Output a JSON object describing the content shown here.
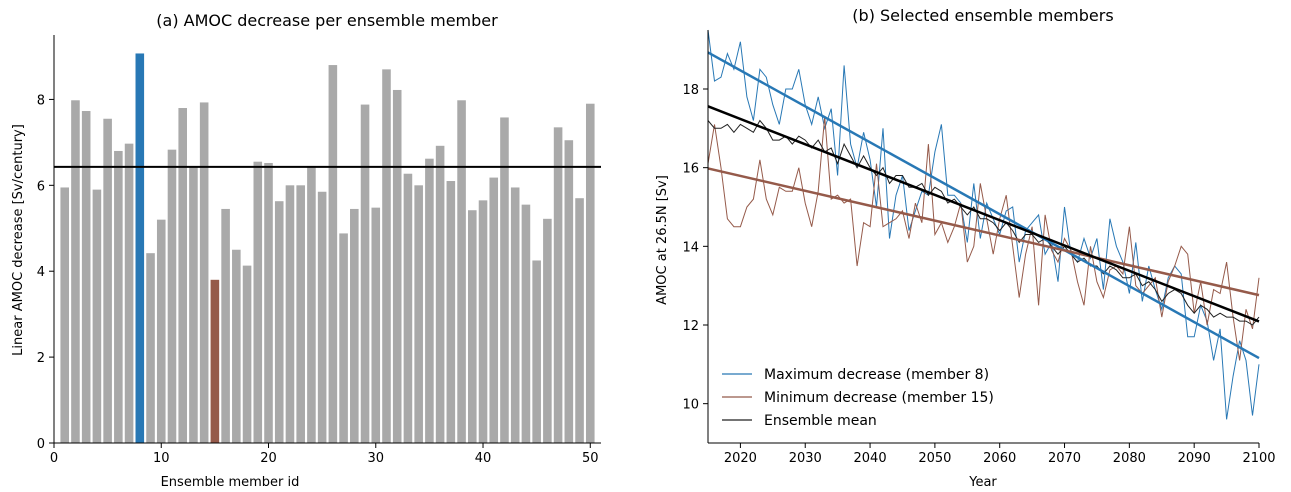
{
  "chart_data": [
    {
      "type": "bar",
      "title": "(a) AMOC decrease per ensemble member",
      "xlabel": "Ensemble member id",
      "ylabel": "Linear AMOC decrease [Sv/century]",
      "xlim": [
        0,
        51
      ],
      "ylim": [
        0,
        9.5
      ],
      "xticks": [
        "0",
        "10",
        "20",
        "30",
        "40",
        "50"
      ],
      "yticks": [
        "0",
        "2",
        "4",
        "6",
        "8"
      ],
      "members": [
        1,
        2,
        3,
        4,
        5,
        6,
        7,
        8,
        9,
        10,
        11,
        12,
        13,
        14,
        15,
        16,
        17,
        18,
        19,
        20,
        21,
        22,
        23,
        24,
        25,
        26,
        27,
        28,
        29,
        30,
        31,
        32,
        33,
        34,
        35,
        36,
        37,
        38,
        39,
        40,
        41,
        42,
        43,
        44,
        45,
        46,
        47,
        48,
        49,
        50
      ],
      "values": [
        5.95,
        7.98,
        7.73,
        5.9,
        7.55,
        6.8,
        6.97,
        9.07,
        4.42,
        5.2,
        6.83,
        7.8,
        6.42,
        7.93,
        3.8,
        5.45,
        4.5,
        4.13,
        6.55,
        6.52,
        5.63,
        6.0,
        6.0,
        6.45,
        5.85,
        8.8,
        4.88,
        5.45,
        7.88,
        5.48,
        8.7,
        8.22,
        6.27,
        6.0,
        6.62,
        6.92,
        6.1,
        7.98,
        5.42,
        5.65,
        6.18,
        7.58,
        5.95,
        5.55,
        4.25,
        5.22,
        7.35,
        7.05,
        5.7,
        7.9
      ],
      "highlight": [
        {
          "member": 8,
          "color": "#2878b5"
        },
        {
          "member": 15,
          "color": "#955a4a"
        }
      ],
      "bar_color": "#a9a9a9",
      "mean_line": 6.43
    },
    {
      "type": "line",
      "title": "(b) Selected ensemble members",
      "xlabel": "Year",
      "ylabel": "AMOC at 26.5N [Sv]",
      "xlim": [
        2015,
        2100
      ],
      "ylim": [
        9.0,
        19.5
      ],
      "xticks": [
        "2020",
        "2030",
        "2040",
        "2050",
        "2060",
        "2070",
        "2080",
        "2090",
        "2100"
      ],
      "yticks": [
        "10",
        "12",
        "14",
        "16",
        "18"
      ],
      "years_start": 2015,
      "series": [
        {
          "name": "Maximum decrease (member 8)",
          "color": "#2878b5",
          "values": [
            19.5,
            18.2,
            18.3,
            18.9,
            18.5,
            19.2,
            17.8,
            17.2,
            18.5,
            18.3,
            17.6,
            17.1,
            18.0,
            18.0,
            18.5,
            17.6,
            17.1,
            17.8,
            17.0,
            17.5,
            15.8,
            18.6,
            16.6,
            16.0,
            16.9,
            16.2,
            15.0,
            17.0,
            14.2,
            15.3,
            15.8,
            14.4,
            14.9,
            15.4,
            15.3,
            16.4,
            17.1,
            15.3,
            15.3,
            15.1,
            14.1,
            15.6,
            14.2,
            15.1,
            14.7,
            14.3,
            14.9,
            15.0,
            13.6,
            14.4,
            14.6,
            14.8,
            13.8,
            14.1,
            13.1,
            15.0,
            13.8,
            13.6,
            14.2,
            13.7,
            14.2,
            12.9,
            14.7,
            14.0,
            13.6,
            12.8,
            14.1,
            12.6,
            13.5,
            12.9,
            12.4,
            13.2,
            13.5,
            13.3,
            11.7,
            11.7,
            12.5,
            12.1,
            11.1,
            11.9,
            9.6,
            10.7,
            11.6,
            11.1,
            9.7,
            11.0
          ]
        },
        {
          "name": "Minimum decrease (member 15)",
          "color": "#955a4a",
          "values": [
            16.1,
            17.1,
            16.0,
            14.7,
            14.5,
            14.5,
            15.0,
            15.2,
            16.2,
            15.2,
            14.8,
            15.5,
            15.4,
            15.4,
            16.0,
            15.1,
            14.5,
            15.4,
            17.3,
            15.2,
            15.3,
            15.1,
            15.2,
            13.5,
            14.6,
            14.5,
            16.1,
            14.5,
            14.6,
            14.7,
            14.9,
            14.2,
            15.1,
            14.6,
            16.6,
            14.3,
            14.6,
            14.1,
            14.5,
            15.1,
            13.6,
            14.0,
            15.6,
            14.7,
            13.8,
            14.7,
            15.3,
            14.0,
            12.7,
            13.8,
            14.5,
            12.5,
            14.8,
            13.9,
            13.6,
            14.2,
            13.9,
            13.1,
            12.5,
            14.0,
            13.1,
            12.7,
            13.4,
            13.5,
            13.3,
            14.5,
            13.0,
            12.8,
            13.0,
            13.2,
            12.2,
            13.1,
            13.5,
            14.0,
            13.8,
            12.3,
            13.1,
            12.0,
            12.9,
            12.8,
            13.6,
            12.2,
            11.1,
            12.4,
            11.9,
            13.2
          ]
        },
        {
          "name": "Ensemble mean",
          "color": "#222222",
          "values": [
            17.2,
            17.0,
            17.0,
            17.1,
            16.9,
            17.1,
            17.0,
            16.9,
            17.2,
            17.0,
            16.7,
            16.7,
            16.8,
            16.6,
            16.8,
            16.7,
            16.5,
            16.7,
            16.4,
            16.5,
            16.1,
            16.6,
            16.3,
            16.0,
            16.3,
            16.0,
            15.8,
            16.0,
            15.6,
            15.8,
            15.8,
            15.5,
            15.5,
            15.6,
            15.3,
            15.5,
            15.4,
            15.1,
            15.2,
            15.0,
            14.8,
            15.0,
            14.7,
            14.7,
            14.6,
            14.4,
            14.6,
            14.4,
            14.1,
            14.3,
            14.3,
            14.1,
            14.2,
            14.0,
            13.8,
            14.0,
            13.8,
            13.6,
            13.7,
            13.5,
            13.5,
            13.3,
            13.5,
            13.4,
            13.2,
            13.2,
            13.3,
            13.0,
            13.1,
            12.9,
            12.6,
            12.8,
            12.9,
            12.8,
            12.5,
            12.3,
            12.5,
            12.4,
            12.2,
            12.3,
            12.2,
            12.2,
            12.1,
            12.1,
            12.0,
            12.2
          ]
        }
      ],
      "trend_lines": [
        {
          "series": "Maximum decrease (member 8)",
          "color": "#2878b5",
          "start": [
            2015,
            18.93
          ],
          "end": [
            2100,
            11.16
          ]
        },
        {
          "series": "Minimum decrease (member 15)",
          "color": "#955a4a",
          "start": [
            2015,
            15.98
          ],
          "end": [
            2100,
            12.76
          ]
        },
        {
          "series": "Ensemble mean",
          "color": "#000000",
          "start": [
            2015,
            17.56
          ],
          "end": [
            2100,
            12.09
          ]
        }
      ],
      "legend": "bottom-left"
    }
  ]
}
